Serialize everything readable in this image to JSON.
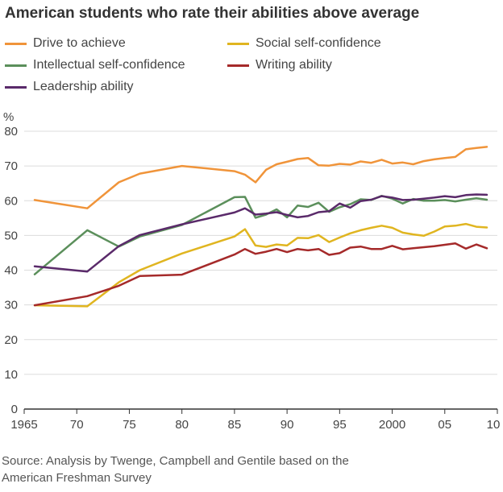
{
  "chart_data": {
    "type": "line",
    "title": "American students who rate their abilities above average",
    "ylabel": "%",
    "xlabel": "",
    "xlim": [
      1965,
      2010
    ],
    "ylim": [
      0,
      80
    ],
    "x_ticks": [
      1965,
      1970,
      1975,
      1980,
      1985,
      1990,
      1995,
      2000,
      2005,
      2010
    ],
    "x_tick_labels": [
      "1965",
      "70",
      "75",
      "80",
      "85",
      "90",
      "95",
      "2000",
      "05",
      "10"
    ],
    "y_ticks": [
      0,
      10,
      20,
      30,
      40,
      50,
      60,
      70,
      80
    ],
    "y_tick_labels": [
      "0",
      "10",
      "20",
      "30",
      "40",
      "50",
      "60",
      "70",
      "80"
    ],
    "grid": true,
    "source": "Source: Analysis by Twenge, Campbell and Gentile based on the American Freshman Survey",
    "source_lines": [
      "Source: Analysis by Twenge, Campbell and Gentile based on the",
      "American Freshman Survey"
    ],
    "series": [
      {
        "name": "Drive to achieve",
        "color": "#f0943a",
        "x": [
          1966,
          1971,
          1974,
          1976,
          1980,
          1985,
          1986,
          1987,
          1988,
          1989,
          1990,
          1991,
          1992,
          1993,
          1994,
          1995,
          1996,
          1997,
          1998,
          1999,
          2000,
          2001,
          2002,
          2003,
          2004,
          2005,
          2006,
          2007,
          2008,
          2009
        ],
        "values": [
          60.2,
          57.8,
          65.3,
          67.8,
          70,
          68.5,
          67.5,
          65.3,
          68.9,
          70.5,
          71.2,
          72,
          72.3,
          70.2,
          70.1,
          70.6,
          70.4,
          71.3,
          70.9,
          71.8,
          70.7,
          71,
          70.5,
          71.4,
          71.9,
          72.3,
          72.6,
          74.8,
          75.2,
          75.5
        ]
      },
      {
        "name": "Social self-confidence",
        "color": "#e0b520",
        "x": [
          1966,
          1971,
          1974,
          1976,
          1980,
          1985,
          1986,
          1987,
          1988,
          1989,
          1990,
          1991,
          1992,
          1993,
          1994,
          1995,
          1996,
          1997,
          1998,
          1999,
          2000,
          2001,
          2002,
          2003,
          2004,
          2005,
          2006,
          2007,
          2008,
          2009
        ],
        "values": [
          29.9,
          29.6,
          36.5,
          40,
          44.8,
          49.7,
          51.8,
          47.1,
          46.7,
          47.4,
          47.1,
          49.3,
          49.2,
          50.1,
          48.1,
          49.4,
          50.6,
          51.5,
          52.2,
          52.8,
          52.2,
          50.8,
          50.3,
          49.9,
          51.1,
          52.6,
          52.8,
          53.3,
          52.5,
          52.3
        ]
      },
      {
        "name": "Intellectual self-confidence",
        "color": "#5b8f5b",
        "x": [
          1966,
          1971,
          1974,
          1976,
          1980,
          1985,
          1986,
          1987,
          1988,
          1989,
          1990,
          1991,
          1992,
          1993,
          1994,
          1995,
          1996,
          1997,
          1998,
          1999,
          2000,
          2001,
          2002,
          2003,
          2004,
          2005,
          2006,
          2007,
          2008,
          2009
        ],
        "values": [
          38.8,
          51.5,
          46.8,
          49.7,
          53,
          61,
          61.1,
          55.1,
          56,
          57.5,
          55.2,
          58.6,
          58.2,
          59.4,
          56.8,
          58.1,
          59,
          60.4,
          60.2,
          61.4,
          60.6,
          59.2,
          60.5,
          60,
          60,
          60.2,
          59.8,
          60.3,
          60.7,
          60.3
        ]
      },
      {
        "name": "Writing ability",
        "color": "#a52a2a",
        "x": [
          1966,
          1971,
          1974,
          1976,
          1980,
          1985,
          1986,
          1987,
          1988,
          1989,
          1990,
          1991,
          1992,
          1993,
          1994,
          1995,
          1996,
          1997,
          1998,
          1999,
          2000,
          2001,
          2002,
          2003,
          2004,
          2005,
          2006,
          2007,
          2008,
          2009
        ],
        "values": [
          29.9,
          32.5,
          35.5,
          38.3,
          38.7,
          44.5,
          46.1,
          44.7,
          45.3,
          46.1,
          45.2,
          46.1,
          45.7,
          46.1,
          44.4,
          44.9,
          46.5,
          46.8,
          46.1,
          46.1,
          47,
          46,
          46.3,
          46.6,
          46.9,
          47.3,
          47.7,
          46.2,
          47.4,
          46.3
        ]
      },
      {
        "name": "Leadership ability",
        "color": "#5a2a6a",
        "x": [
          1966,
          1971,
          1974,
          1976,
          1980,
          1985,
          1986,
          1987,
          1988,
          1989,
          1990,
          1991,
          1992,
          1993,
          1994,
          1995,
          1996,
          1997,
          1998,
          1999,
          2000,
          2001,
          2002,
          2003,
          2004,
          2005,
          2006,
          2007,
          2008,
          2009
        ],
        "values": [
          41.1,
          39.6,
          46.9,
          50.1,
          53.2,
          56.6,
          57.8,
          56,
          56.3,
          56.7,
          55.9,
          55.2,
          55.6,
          56.7,
          57,
          59.2,
          58,
          59.9,
          60.3,
          61.3,
          60.9,
          60.2,
          60.3,
          60.6,
          60.9,
          61.3,
          61,
          61.6,
          61.8,
          61.7
        ]
      }
    ]
  }
}
